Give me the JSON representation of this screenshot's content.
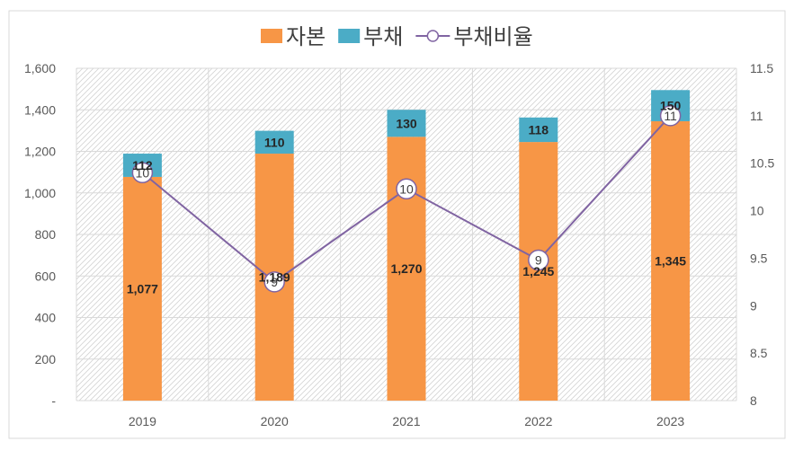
{
  "colors": {
    "capital": "#f79646",
    "debt": "#4bacc6",
    "ratio": "#8064a2",
    "grid": "#d9d9d9"
  },
  "chart_data": {
    "type": "bar",
    "stacked": true,
    "categories": [
      "2019",
      "2020",
      "2021",
      "2022",
      "2023"
    ],
    "series": [
      {
        "name": "자본",
        "type": "bar",
        "axis": "left",
        "values": [
          1077,
          1189,
          1270,
          1245,
          1345
        ],
        "labels": [
          "1,077",
          "1,189",
          "1,270",
          "1,245",
          "1,345"
        ]
      },
      {
        "name": "부채",
        "type": "bar",
        "axis": "left",
        "values": [
          112,
          110,
          130,
          118,
          150
        ],
        "labels": [
          "112",
          "110",
          "130",
          "118",
          "150"
        ]
      },
      {
        "name": "부채비율",
        "type": "line",
        "axis": "right",
        "values": [
          10.4,
          9.25,
          10.23,
          9.48,
          11.0
        ],
        "labels": [
          "10",
          "9",
          "10",
          "9",
          "11"
        ]
      }
    ],
    "y_left": {
      "lim": [
        0,
        1600
      ],
      "ticks": [
        0,
        200,
        400,
        600,
        800,
        1000,
        1200,
        1400,
        1600
      ],
      "tick_labels": [
        "-",
        "200",
        "400",
        "600",
        "800",
        "1,000",
        "1,200",
        "1,400",
        "1,600"
      ]
    },
    "y_right": {
      "lim": [
        8,
        11.5
      ],
      "ticks": [
        8,
        8.5,
        9,
        9.5,
        10,
        10.5,
        11,
        11.5
      ],
      "tick_labels": [
        "8",
        "8.5",
        "9",
        "9.5",
        "10",
        "10.5",
        "11",
        "11.5"
      ]
    },
    "legend_position": "top",
    "grid": true
  }
}
